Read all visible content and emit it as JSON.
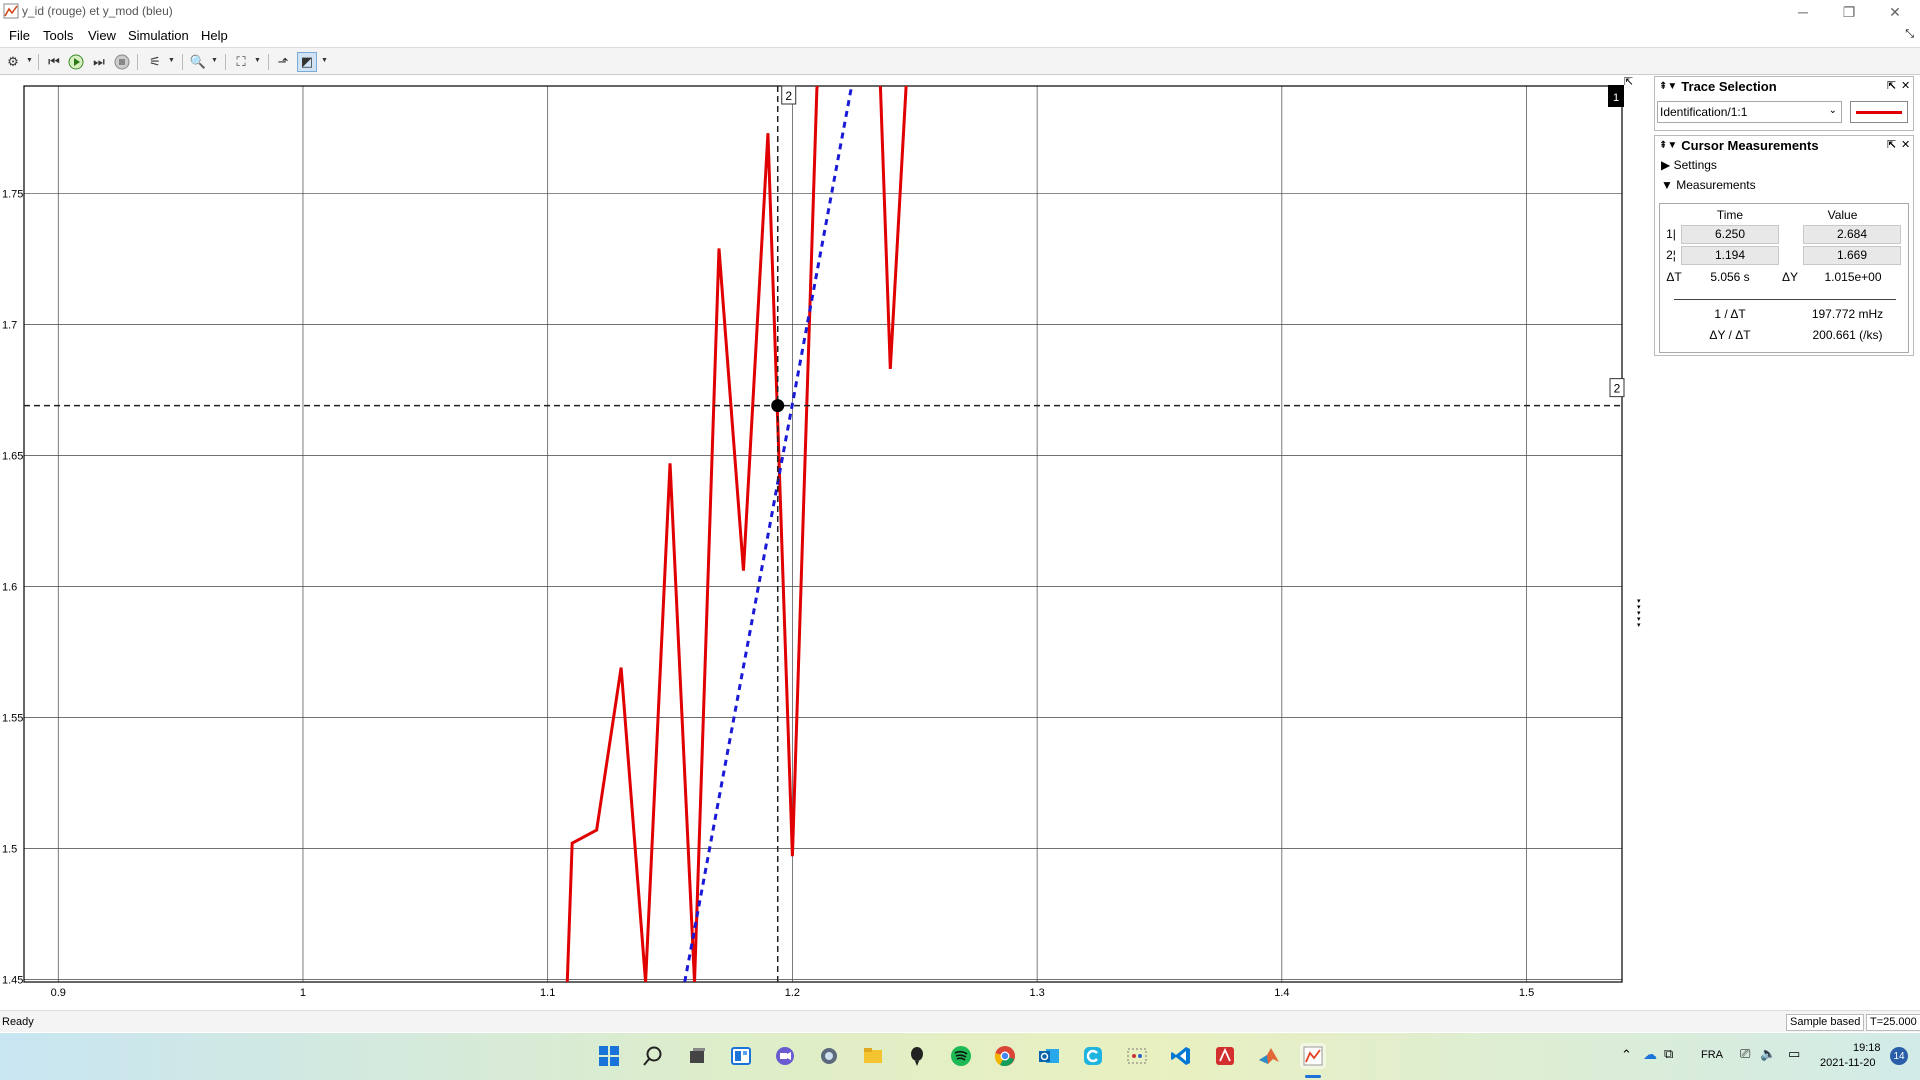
{
  "window": {
    "title": "y_id (rouge)  et y_mod (bleu)",
    "minimize": "─",
    "restore": "❐",
    "close": "✕"
  },
  "menu": {
    "items": [
      "File",
      "Tools",
      "View",
      "Simulation",
      "Help"
    ]
  },
  "toolbar": {
    "buttons": [
      "settings-icon",
      "step-back-icon",
      "run-icon",
      "step-forward-icon",
      "stop-icon",
      "highlight-icon",
      "zoom-icon",
      "fit-icon",
      "triggers-icon",
      "cursor-measurements-icon"
    ]
  },
  "plot": {
    "line_colors": {
      "y_id": "#e00000",
      "y_mod": "#1a1ad6"
    },
    "cursor_labels": {
      "vertical": "2",
      "horizontal": "2",
      "active_marker": "1"
    }
  },
  "chart_data": {
    "type": "line",
    "xlim": [
      0.886,
      1.539
    ],
    "ylim": [
      1.449,
      1.791
    ],
    "xticks": [
      "0.9",
      "1",
      "1.1",
      "1.2",
      "1.3",
      "1.4",
      "1.5"
    ],
    "yticks": [
      "1.45",
      "1.5",
      "1.55",
      "1.6",
      "1.65",
      "1.7",
      "1.75"
    ],
    "grid": true,
    "series": [
      {
        "color": "#e00000",
        "style": "solid",
        "x": [
          1.108,
          1.11,
          1.12,
          1.13,
          1.14,
          1.15,
          1.16,
          1.17,
          1.18,
          1.19,
          1.2,
          1.21,
          1.22,
          1.23,
          1.24,
          1.25
        ],
        "y": [
          1.449,
          1.502,
          1.507,
          1.569,
          1.449,
          1.647,
          1.449,
          1.729,
          1.606,
          1.773,
          1.497,
          1.79,
          1.85,
          1.95,
          1.683,
          1.85
        ]
      },
      {
        "color": "#1a1ad6",
        "style": "dashed",
        "x": [
          1.156,
          1.224
        ],
        "y": [
          1.449,
          1.79
        ]
      }
    ],
    "cursors": {
      "x": 1.194,
      "y": 1.669
    }
  },
  "trace_selection": {
    "title": "Trace Selection",
    "selected": "Identification/1:1",
    "swatch_color": "#e00000"
  },
  "cursor_measurements": {
    "title": "Cursor Measurements",
    "settings_label": "Settings",
    "measurements_label": "Measurements",
    "col_time": "Time",
    "col_value": "Value",
    "row1_label": "1",
    "row1_time": "6.250",
    "row1_value": "2.684",
    "row2_label": "2",
    "row2_time": "1.194",
    "row2_value": "1.669",
    "dt_label": "ΔT",
    "dt_value": "5.056 s",
    "dy_label": "ΔY",
    "dy_value": "1.015e+00",
    "inv_dt_label": "1 / ΔT",
    "inv_dt_value": "197.772 mHz",
    "slope_label": "ΔY / ΔT",
    "slope_value": "200.661 (/ks)"
  },
  "status": {
    "ready": "Ready",
    "mode": "Sample based",
    "time": "T=25.000"
  },
  "taskbar": {
    "language": "FRA",
    "time": "19:18",
    "date": "2021-11-20",
    "notifications": "14"
  }
}
